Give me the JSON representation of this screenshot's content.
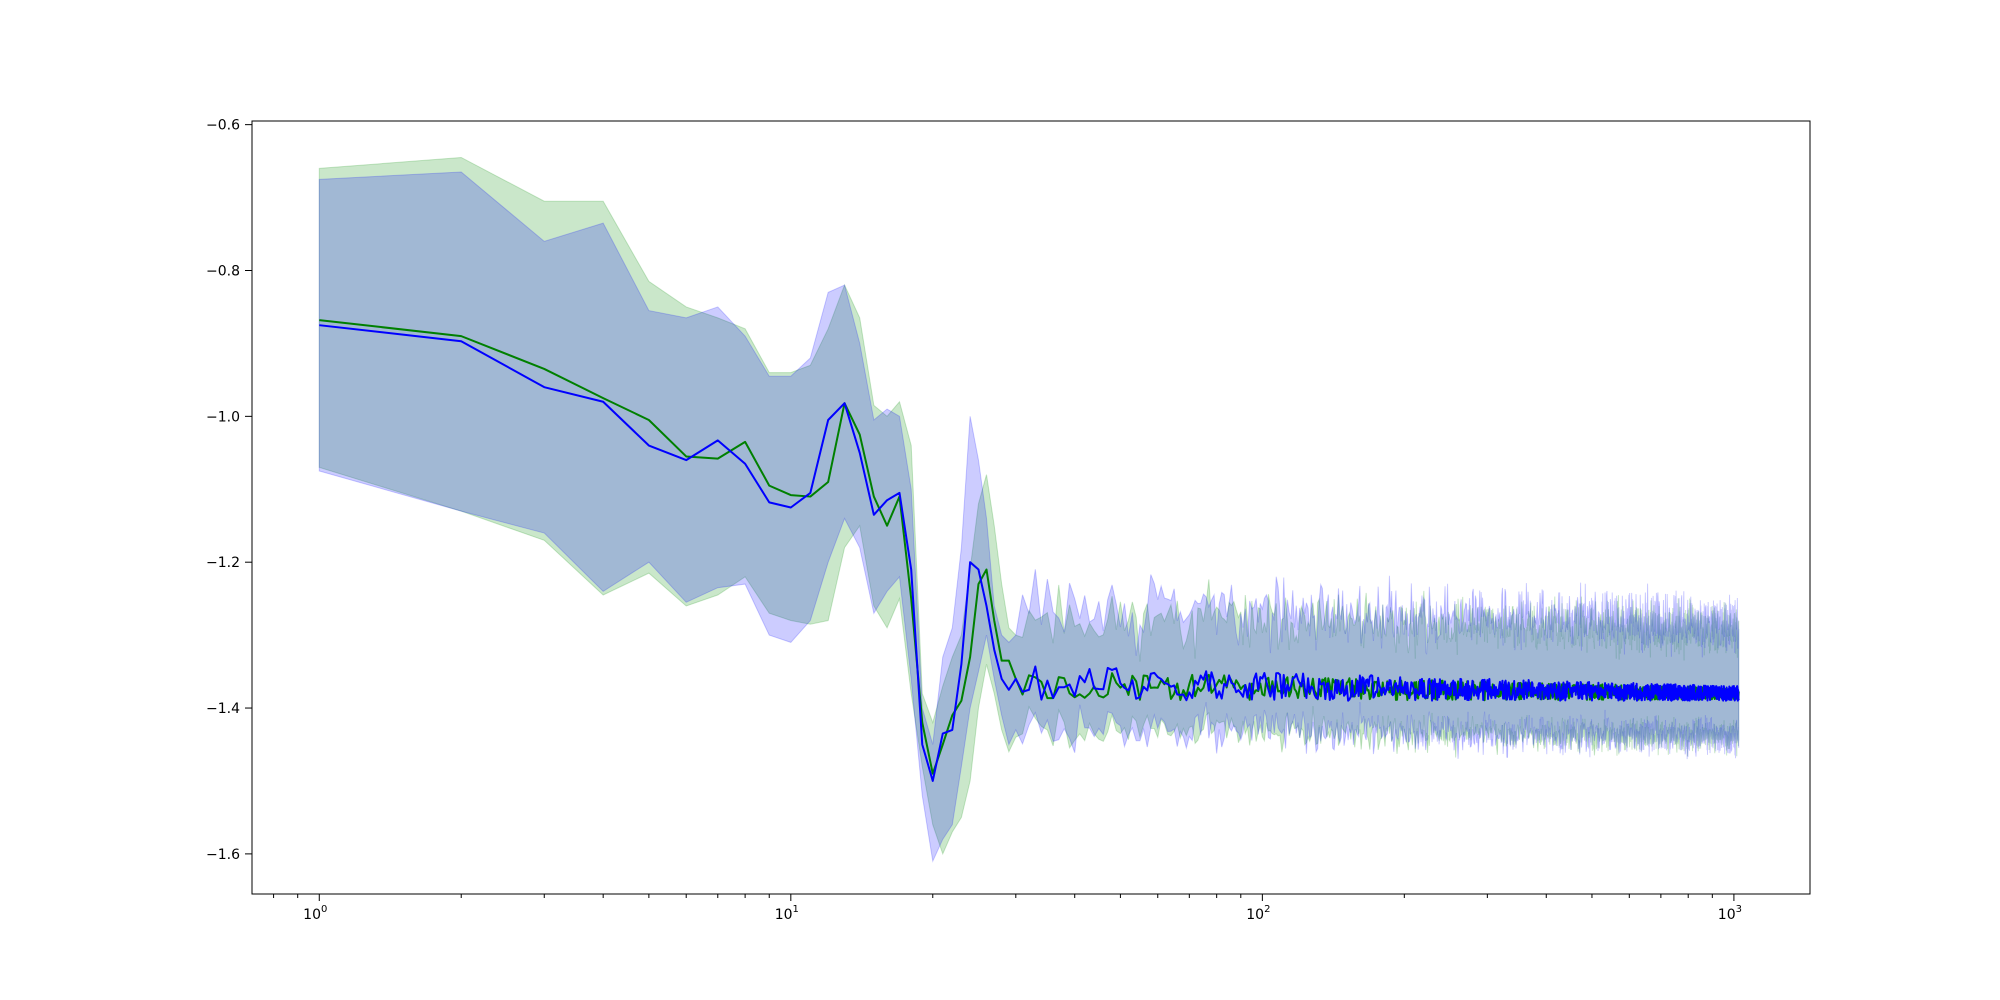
{
  "chart_data": {
    "type": "line",
    "title": "",
    "xlabel": "",
    "ylabel": "",
    "xscale": "log",
    "yscale": "linear",
    "xlim": [
      0.72,
      1450
    ],
    "ylim": [
      -1.655,
      -0.595
    ],
    "grid": false,
    "legend": "none",
    "x_ticks": [
      {
        "value": 1,
        "base": "10",
        "exp": "0"
      },
      {
        "value": 10,
        "base": "10",
        "exp": "1"
      },
      {
        "value": 100,
        "base": "10",
        "exp": "2"
      },
      {
        "value": 1000,
        "base": "10",
        "exp": "3"
      }
    ],
    "y_ticks": [
      {
        "value": -0.6,
        "label": "−0.6"
      },
      {
        "value": -0.8,
        "label": "−0.8"
      },
      {
        "value": -1.0,
        "label": "−1.0"
      },
      {
        "value": -1.2,
        "label": "−1.2"
      },
      {
        "value": -1.4,
        "label": "−1.4"
      },
      {
        "value": -1.6,
        "label": "−1.6"
      }
    ],
    "x_end": 1024,
    "series": [
      {
        "color": "#008000",
        "band_color": "#2ca02c",
        "band_opacity": 0.25,
        "x": [
          1,
          2,
          3,
          4,
          5,
          6,
          7,
          8,
          9,
          10,
          11,
          12,
          13,
          14,
          15,
          16,
          17,
          18,
          19,
          20,
          21,
          22,
          23,
          24,
          25,
          26,
          27,
          28,
          29,
          30
        ],
        "mean": [
          -0.868,
          -0.89,
          -0.935,
          -0.975,
          -1.005,
          -1.055,
          -1.058,
          -1.035,
          -1.095,
          -1.108,
          -1.11,
          -1.09,
          -0.982,
          -1.025,
          -1.11,
          -1.15,
          -1.11,
          -1.25,
          -1.42,
          -1.49,
          -1.45,
          -1.41,
          -1.39,
          -1.33,
          -1.23,
          -1.21,
          -1.28,
          -1.335,
          -1.335,
          -1.36
        ],
        "upper": [
          -0.66,
          -0.645,
          -0.705,
          -0.705,
          -0.815,
          -0.85,
          -0.865,
          -0.88,
          -0.94,
          -0.94,
          -0.93,
          -0.88,
          -0.82,
          -0.865,
          -0.985,
          -1.0,
          -0.98,
          -1.04,
          -1.38,
          -1.42,
          -1.37,
          -1.33,
          -1.3,
          -1.21,
          -1.12,
          -1.08,
          -1.15,
          -1.23,
          -1.29,
          -1.3
        ],
        "lower": [
          -1.07,
          -1.13,
          -1.17,
          -1.245,
          -1.215,
          -1.26,
          -1.245,
          -1.22,
          -1.27,
          -1.28,
          -1.285,
          -1.28,
          -1.18,
          -1.15,
          -1.26,
          -1.29,
          -1.25,
          -1.38,
          -1.48,
          -1.56,
          -1.6,
          -1.57,
          -1.55,
          -1.5,
          -1.4,
          -1.34,
          -1.38,
          -1.43,
          -1.46,
          -1.44
        ],
        "tail": {
          "from": 30,
          "mean": -1.37,
          "mean_end": -1.38,
          "noise": 0.022,
          "noise_end": 0.008,
          "upper_offset": 0.09,
          "lower_offset": 0.06,
          "band_noise": 0.05,
          "seed": 11
        }
      },
      {
        "color": "#0000ff",
        "band_color": "#0000ff",
        "band_opacity": 0.2,
        "x": [
          1,
          2,
          3,
          4,
          5,
          6,
          7,
          8,
          9,
          10,
          11,
          12,
          13,
          14,
          15,
          16,
          17,
          18,
          19,
          20,
          21,
          22,
          23,
          24,
          25,
          26,
          27,
          28,
          29,
          30
        ],
        "mean": [
          -0.875,
          -0.897,
          -0.96,
          -0.98,
          -1.04,
          -1.06,
          -1.033,
          -1.065,
          -1.118,
          -1.125,
          -1.105,
          -1.005,
          -0.982,
          -1.05,
          -1.135,
          -1.115,
          -1.105,
          -1.21,
          -1.45,
          -1.5,
          -1.435,
          -1.43,
          -1.34,
          -1.2,
          -1.21,
          -1.26,
          -1.32,
          -1.36,
          -1.375,
          -1.36
        ],
        "upper": [
          -0.675,
          -0.665,
          -0.76,
          -0.735,
          -0.855,
          -0.865,
          -0.85,
          -0.89,
          -0.945,
          -0.945,
          -0.92,
          -0.83,
          -0.82,
          -0.9,
          -1.005,
          -0.99,
          -1.0,
          -1.1,
          -1.4,
          -1.45,
          -1.33,
          -1.29,
          -1.18,
          -1.0,
          -1.06,
          -1.14,
          -1.26,
          -1.3,
          -1.31,
          -1.3
        ],
        "lower": [
          -1.075,
          -1.13,
          -1.16,
          -1.24,
          -1.2,
          -1.255,
          -1.235,
          -1.23,
          -1.3,
          -1.31,
          -1.28,
          -1.2,
          -1.14,
          -1.18,
          -1.27,
          -1.24,
          -1.22,
          -1.36,
          -1.52,
          -1.61,
          -1.58,
          -1.56,
          -1.48,
          -1.4,
          -1.35,
          -1.3,
          -1.36,
          -1.41,
          -1.45,
          -1.43
        ],
        "tail": {
          "from": 30,
          "mean": -1.365,
          "mean_end": -1.38,
          "noise": 0.025,
          "noise_end": 0.01,
          "upper_offset": 0.1,
          "lower_offset": 0.06,
          "band_noise": 0.055,
          "seed": 29
        }
      }
    ]
  }
}
